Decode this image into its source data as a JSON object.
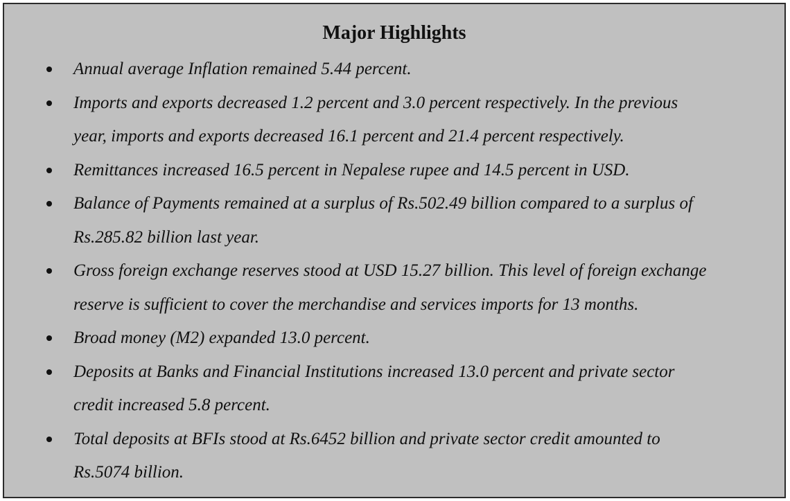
{
  "title": "Major Highlights",
  "items": [
    {
      "lines": [
        "Annual average Inflation remained 5.44 percent."
      ]
    },
    {
      "lines": [
        "Imports and exports decreased 1.2 percent and 3.0 percent respectively. In the previous",
        "year, imports and exports decreased 16.1 percent and  21.4 percent respectively."
      ]
    },
    {
      "lines": [
        "Remittances increased 16.5 percent in Nepalese rupee and 14.5 percent in USD."
      ]
    },
    {
      "lines": [
        "Balance of Payments remained at a surplus of Rs.502.49 billion compared to a surplus of",
        "Rs.285.82 billion last year."
      ]
    },
    {
      "lines": [
        "Gross foreign exchange reserves stood at USD 15.27 billion. This level of foreign exchange",
        "reserve is sufficient to cover the merchandise and services imports for 13 months."
      ]
    },
    {
      "lines": [
        "Broad money (M2) expanded 13.0 percent."
      ]
    },
    {
      "lines": [
        "Deposits at Banks and Financial Institutions increased 13.0 percent and private sector",
        "credit increased 5.8 percent."
      ]
    },
    {
      "lines": [
        "Total deposits at BFIs stood at Rs.6452 billion and private sector credit amounted to",
        "Rs.5074 billion."
      ]
    }
  ]
}
